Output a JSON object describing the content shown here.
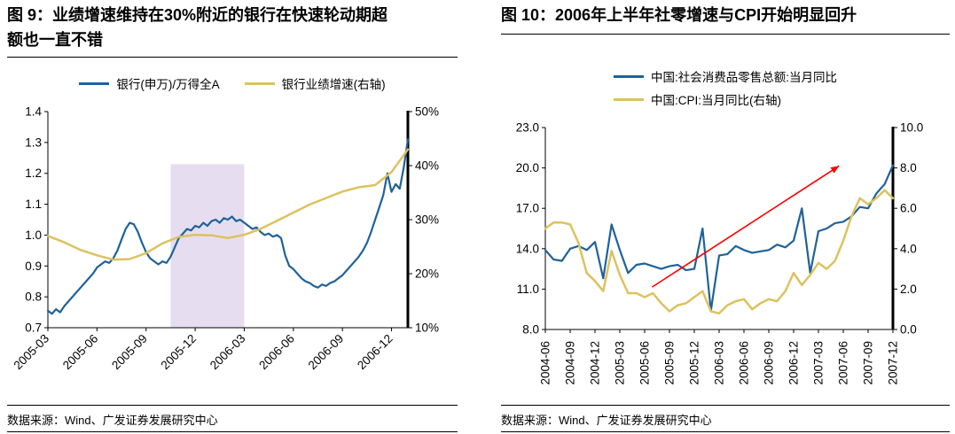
{
  "chart_data": [
    {
      "type": "line",
      "figure_label": "图 9",
      "title": "图 9：业绩增速维持在30%附近的银行在快速轮动期超额也一直不错",
      "source": "数据来源：Wind、广发证券发展研究中心",
      "months_total": 22,
      "x_ticks": [
        {
          "label": "2005-03",
          "month": 0
        },
        {
          "label": "2005-06",
          "month": 3
        },
        {
          "label": "2005-09",
          "month": 6
        },
        {
          "label": "2005-12",
          "month": 9
        },
        {
          "label": "2006-03",
          "month": 12
        },
        {
          "label": "2006-06",
          "month": 15
        },
        {
          "label": "2006-09",
          "month": 18
        },
        {
          "label": "2006-12",
          "month": 21
        }
      ],
      "left_axis": {
        "min": 0.7,
        "max": 1.4,
        "ticks": [
          {
            "label": "1.4",
            "v": 1.4
          },
          {
            "label": "1.3",
            "v": 1.3
          },
          {
            "label": "1.2",
            "v": 1.2
          },
          {
            "label": "1.1",
            "v": 1.1
          },
          {
            "label": "1.0",
            "v": 1.0
          },
          {
            "label": "0.9",
            "v": 0.9
          },
          {
            "label": "0.8",
            "v": 0.8
          },
          {
            "label": "0.7",
            "v": 0.7
          }
        ]
      },
      "right_axis": {
        "min": 10,
        "max": 50,
        "ticks": [
          {
            "label": "50%",
            "v": 50
          },
          {
            "label": "40%",
            "v": 40
          },
          {
            "label": "30%",
            "v": 30
          },
          {
            "label": "20%",
            "v": 20
          },
          {
            "label": "10%",
            "v": 10
          }
        ]
      },
      "shaded_band": {
        "from_month": 7.5,
        "to_month": 12,
        "top_value": 1.23,
        "color": "#E6DEF0"
      },
      "series": [
        {
          "name": "银行(申万)/万得全A",
          "axis": "left",
          "color": "#1F6299",
          "width": 2.2,
          "values": [
            0.755,
            0.745,
            0.76,
            0.75,
            0.77,
            0.785,
            0.8,
            0.815,
            0.83,
            0.845,
            0.86,
            0.875,
            0.895,
            0.905,
            0.915,
            0.91,
            0.925,
            0.95,
            0.985,
            1.02,
            1.04,
            1.035,
            1.01,
            0.975,
            0.945,
            0.925,
            0.915,
            0.905,
            0.915,
            0.91,
            0.93,
            0.96,
            0.99,
            1.005,
            1.02,
            1.015,
            1.03,
            1.025,
            1.04,
            1.03,
            1.045,
            1.05,
            1.04,
            1.055,
            1.05,
            1.06,
            1.045,
            1.05,
            1.04,
            1.03,
            1.02,
            1.025,
            1.01,
            1.0,
            1.005,
            0.995,
            1.0,
            0.99,
            0.935,
            0.9,
            0.89,
            0.875,
            0.86,
            0.85,
            0.845,
            0.835,
            0.83,
            0.84,
            0.835,
            0.845,
            0.85,
            0.86,
            0.87,
            0.885,
            0.9,
            0.915,
            0.93,
            0.95,
            0.975,
            1.01,
            1.05,
            1.09,
            1.13,
            1.2,
            1.14,
            1.165,
            1.15,
            1.22,
            1.31
          ]
        },
        {
          "name": "银行业绩增速(右轴)",
          "axis": "right",
          "color": "#DCC25F",
          "width": 2.5,
          "values": [
            27.0,
            25.8,
            24.4,
            23.4,
            22.6,
            22.7,
            23.8,
            25.6,
            26.8,
            27.2,
            27.1,
            26.6,
            27.2,
            28.3,
            29.8,
            31.3,
            32.8,
            34.0,
            35.2,
            36.0,
            36.4,
            38.8,
            43.0
          ]
        }
      ]
    },
    {
      "type": "line",
      "figure_label": "图 10",
      "title": "图 10：2006年上半年社零增速与CPI开始明显回升",
      "source": "数据来源：Wind、广发证券发展研究中心",
      "months_total": 42,
      "x_ticks": [
        {
          "label": "2004-06",
          "month": 0
        },
        {
          "label": "2004-09",
          "month": 3
        },
        {
          "label": "2004-12",
          "month": 6
        },
        {
          "label": "2005-03",
          "month": 9
        },
        {
          "label": "2005-06",
          "month": 12
        },
        {
          "label": "2005-09",
          "month": 15
        },
        {
          "label": "2005-12",
          "month": 18
        },
        {
          "label": "2006-03",
          "month": 21
        },
        {
          "label": "2006-06",
          "month": 24
        },
        {
          "label": "2006-09",
          "month": 27
        },
        {
          "label": "2006-12",
          "month": 30
        },
        {
          "label": "2007-03",
          "month": 33
        },
        {
          "label": "2007-06",
          "month": 36
        },
        {
          "label": "2007-09",
          "month": 39
        },
        {
          "label": "2007-12",
          "month": 42
        }
      ],
      "left_axis": {
        "min": 8,
        "max": 23,
        "ticks": [
          {
            "label": "23.0",
            "v": 23
          },
          {
            "label": "20.0",
            "v": 20
          },
          {
            "label": "17.0",
            "v": 17
          },
          {
            "label": "14.0",
            "v": 14
          },
          {
            "label": "11.0",
            "v": 11
          },
          {
            "label": "8.0",
            "v": 8
          }
        ]
      },
      "right_axis": {
        "min": 0,
        "max": 10,
        "ticks": [
          {
            "label": "10.0",
            "v": 10
          },
          {
            "label": "8.0",
            "v": 8
          },
          {
            "label": "6.0",
            "v": 6
          },
          {
            "label": "4.0",
            "v": 4
          },
          {
            "label": "2.0",
            "v": 2
          },
          {
            "label": "0.0",
            "v": 0
          }
        ]
      },
      "arrow": {
        "from": {
          "month": 12.9,
          "value": 2.1
        },
        "to": {
          "month": 35.5,
          "value": 8.1
        },
        "axis": "right",
        "color": "#FF0000"
      },
      "series": [
        {
          "name": "中国:社会消费品零售总额:当月同比",
          "axis": "left",
          "color": "#1F6299",
          "width": 2.2,
          "values": [
            13.9,
            13.2,
            13.1,
            14.0,
            14.2,
            13.9,
            14.5,
            11.8,
            15.8,
            13.9,
            12.2,
            12.8,
            12.9,
            12.7,
            12.5,
            12.7,
            12.8,
            12.4,
            12.5,
            15.5,
            9.4,
            13.5,
            13.6,
            14.2,
            13.9,
            13.7,
            13.8,
            13.9,
            14.3,
            14.1,
            14.6,
            17.0,
            12.2,
            15.3,
            15.5,
            15.9,
            16.0,
            16.4,
            17.1,
            17.0,
            18.1,
            18.8,
            20.2
          ]
        },
        {
          "name": "中国:CPI:当月同比(右轴)",
          "axis": "right",
          "color": "#DCC25F",
          "width": 2.5,
          "values": [
            5.0,
            5.3,
            5.3,
            5.2,
            4.3,
            2.8,
            2.4,
            1.9,
            3.9,
            2.7,
            1.8,
            1.8,
            1.6,
            1.8,
            1.3,
            0.9,
            1.2,
            1.3,
            1.6,
            1.9,
            0.9,
            0.8,
            1.2,
            1.4,
            1.5,
            1.0,
            1.3,
            1.5,
            1.4,
            1.9,
            2.8,
            2.2,
            2.7,
            3.3,
            3.0,
            3.4,
            4.4,
            5.6,
            6.5,
            6.2,
            6.5,
            6.9,
            6.5
          ]
        }
      ]
    }
  ],
  "colors": {
    "axis": "#000000",
    "text": "#000000",
    "background": "#FFFFFF"
  }
}
